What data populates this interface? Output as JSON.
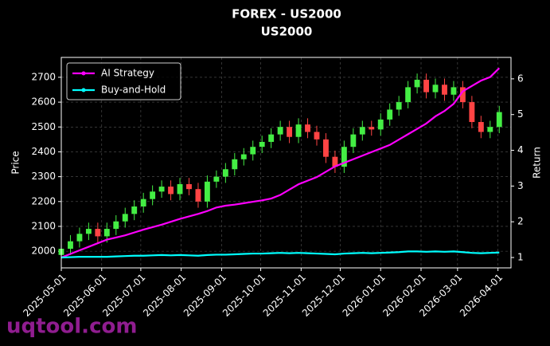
{
  "chart_data": {
    "type": "candlestick",
    "title": "FOREX - US2000",
    "subtitle": "US2000",
    "y_label": "Price",
    "y2_label": "Return",
    "watermark": "uqtool.com",
    "x": [
      "2025-05-01",
      "2025-05-08",
      "2025-05-15",
      "2025-05-22",
      "2025-05-29",
      "2025-06-05",
      "2025-06-12",
      "2025-06-19",
      "2025-06-26",
      "2025-07-03",
      "2025-07-10",
      "2025-07-17",
      "2025-07-24",
      "2025-07-31",
      "2025-08-07",
      "2025-08-14",
      "2025-08-21",
      "2025-08-28",
      "2025-09-04",
      "2025-09-11",
      "2025-09-18",
      "2025-09-25",
      "2025-10-02",
      "2025-10-09",
      "2025-10-16",
      "2025-10-23",
      "2025-10-30",
      "2025-11-06",
      "2025-11-13",
      "2025-11-20",
      "2025-11-27",
      "2025-12-04",
      "2025-12-11",
      "2025-12-18",
      "2025-12-25",
      "2026-01-01",
      "2026-01-08",
      "2026-01-15",
      "2026-01-22",
      "2026-01-29",
      "2026-02-05",
      "2026-02-12",
      "2026-02-19",
      "2026-02-26",
      "2026-03-05",
      "2026-03-12",
      "2026-03-19",
      "2026-03-26",
      "2026-04-02"
    ],
    "open": [
      1985,
      2010,
      2040,
      2070,
      2090,
      2060,
      2090,
      2120,
      2150,
      2180,
      2210,
      2240,
      2260,
      2230,
      2270,
      2250,
      2200,
      2280,
      2300,
      2330,
      2370,
      2390,
      2420,
      2440,
      2470,
      2500,
      2460,
      2510,
      2480,
      2450,
      2380,
      2340,
      2420,
      2470,
      2500,
      2490,
      2530,
      2570,
      2600,
      2660,
      2690,
      2640,
      2670,
      2630,
      2660,
      2600,
      2520,
      2480,
      2500
    ],
    "high": [
      2035,
      2065,
      2095,
      2115,
      2115,
      2115,
      2145,
      2175,
      2205,
      2235,
      2265,
      2285,
      2285,
      2295,
      2295,
      2275,
      2305,
      2325,
      2355,
      2395,
      2415,
      2445,
      2465,
      2495,
      2525,
      2525,
      2535,
      2535,
      2505,
      2475,
      2405,
      2445,
      2495,
      2525,
      2525,
      2555,
      2595,
      2625,
      2685,
      2715,
      2715,
      2695,
      2695,
      2685,
      2685,
      2625,
      2545,
      2525,
      2585
    ],
    "low": [
      1960,
      1985,
      2015,
      2045,
      2035,
      2035,
      2065,
      2095,
      2125,
      2155,
      2185,
      2215,
      2205,
      2205,
      2225,
      2175,
      2175,
      2255,
      2275,
      2305,
      2345,
      2365,
      2395,
      2415,
      2445,
      2435,
      2435,
      2455,
      2425,
      2355,
      2315,
      2315,
      2395,
      2445,
      2465,
      2465,
      2505,
      2545,
      2575,
      2635,
      2615,
      2615,
      2605,
      2605,
      2575,
      2495,
      2455,
      2455,
      2475
    ],
    "close": [
      2010,
      2040,
      2070,
      2090,
      2060,
      2090,
      2120,
      2150,
      2180,
      2210,
      2240,
      2260,
      2230,
      2270,
      2250,
      2200,
      2280,
      2300,
      2330,
      2370,
      2390,
      2420,
      2440,
      2470,
      2500,
      2460,
      2510,
      2480,
      2450,
      2380,
      2340,
      2420,
      2470,
      2500,
      2490,
      2530,
      2570,
      2600,
      2660,
      2690,
      2640,
      2670,
      2630,
      2660,
      2600,
      2520,
      2480,
      2500,
      2560
    ],
    "up_color": "#44ee44",
    "down_color": "#ff4444",
    "series": [
      {
        "name": "AI Strategy",
        "color": "#ff00ff",
        "axis": "y2",
        "values": [
          1.0,
          1.1,
          1.2,
          1.3,
          1.4,
          1.5,
          1.56,
          1.62,
          1.7,
          1.78,
          1.85,
          1.92,
          2.0,
          2.08,
          2.15,
          2.22,
          2.3,
          2.4,
          2.45,
          2.48,
          2.52,
          2.56,
          2.6,
          2.65,
          2.75,
          2.9,
          3.05,
          3.15,
          3.25,
          3.4,
          3.55,
          3.65,
          3.75,
          3.85,
          3.95,
          4.05,
          4.15,
          4.3,
          4.45,
          4.6,
          4.75,
          4.95,
          5.1,
          5.3,
          5.65,
          5.8,
          5.95,
          6.05,
          6.3
        ]
      },
      {
        "name": "Buy-and-Hold",
        "color": "#00ffff",
        "axis": "y2",
        "values": [
          1.0,
          1.01,
          1.02,
          1.02,
          1.02,
          1.02,
          1.03,
          1.04,
          1.05,
          1.05,
          1.06,
          1.07,
          1.06,
          1.07,
          1.06,
          1.05,
          1.07,
          1.08,
          1.08,
          1.09,
          1.1,
          1.11,
          1.11,
          1.12,
          1.13,
          1.12,
          1.13,
          1.12,
          1.11,
          1.1,
          1.09,
          1.11,
          1.12,
          1.13,
          1.12,
          1.13,
          1.14,
          1.15,
          1.17,
          1.17,
          1.16,
          1.17,
          1.16,
          1.17,
          1.15,
          1.13,
          1.12,
          1.13,
          1.14
        ]
      }
    ],
    "xlim": [
      "2025-05-01",
      "2026-04-11"
    ],
    "xticks": [
      "2025-05-01",
      "2025-06-01",
      "2025-07-01",
      "2025-08-01",
      "2025-09-01",
      "2025-10-01",
      "2025-11-01",
      "2025-12-01",
      "2026-01-01",
      "2026-02-01",
      "2026-03-01",
      "2026-04-01"
    ],
    "ylim": [
      1933,
      2780
    ],
    "yticks": [
      2000,
      2100,
      2200,
      2300,
      2400,
      2500,
      2600,
      2700
    ],
    "y2lim": [
      0.71,
      6.6
    ],
    "y2ticks": [
      1,
      2,
      3,
      4,
      5,
      6
    ],
    "grid": true,
    "legend": "upper left"
  }
}
